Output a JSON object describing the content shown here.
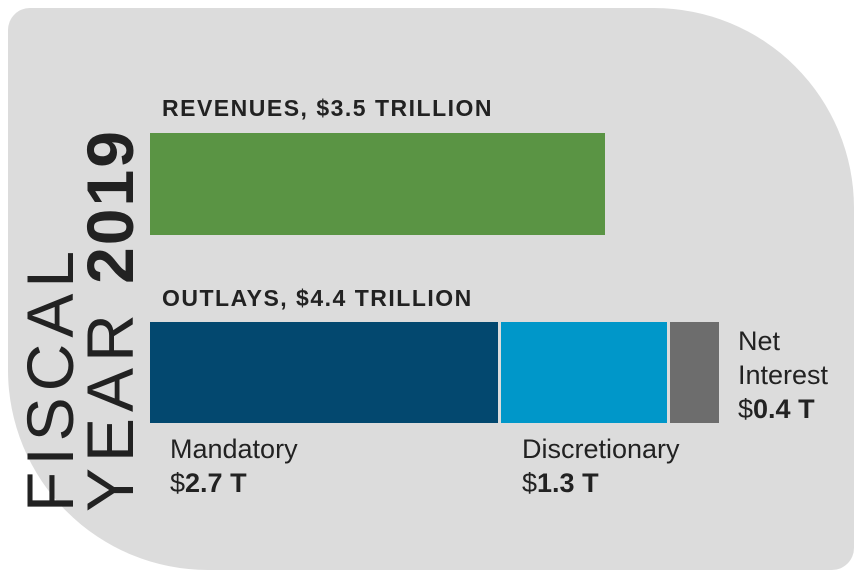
{
  "title": {
    "line1": "FISCAL",
    "line2_prefix": "YEAR ",
    "year": "2019"
  },
  "revenues": {
    "label": "REVENUES, $3.5 TRILLION",
    "value": 3.5,
    "color": "#5a9444"
  },
  "outlays": {
    "label": "OUTLAYS, $4.4 TRILLION",
    "value": 4.4
  },
  "chart_data": {
    "type": "bar",
    "orientation": "horizontal",
    "unit": "trillions of dollars",
    "bars": [
      {
        "name": "REVENUES, $3.5 TRILLION",
        "segments": [
          {
            "label": "",
            "value": 3.5,
            "color": "#5a9444"
          }
        ]
      },
      {
        "name": "OUTLAYS, $4.4 TRILLION",
        "segments": [
          {
            "label": "Mandatory",
            "value_text": "2.7 T",
            "value": 2.7,
            "color": "#03486f"
          },
          {
            "label": "Discretionary",
            "value_text": "1.3 T",
            "value": 1.3,
            "color": "#0097c9"
          },
          {
            "label_line1": "Net",
            "label_line2": "Interest",
            "value_text": "0.4 T",
            "value": 0.4,
            "color": "#6d6d6d"
          }
        ]
      }
    ]
  }
}
